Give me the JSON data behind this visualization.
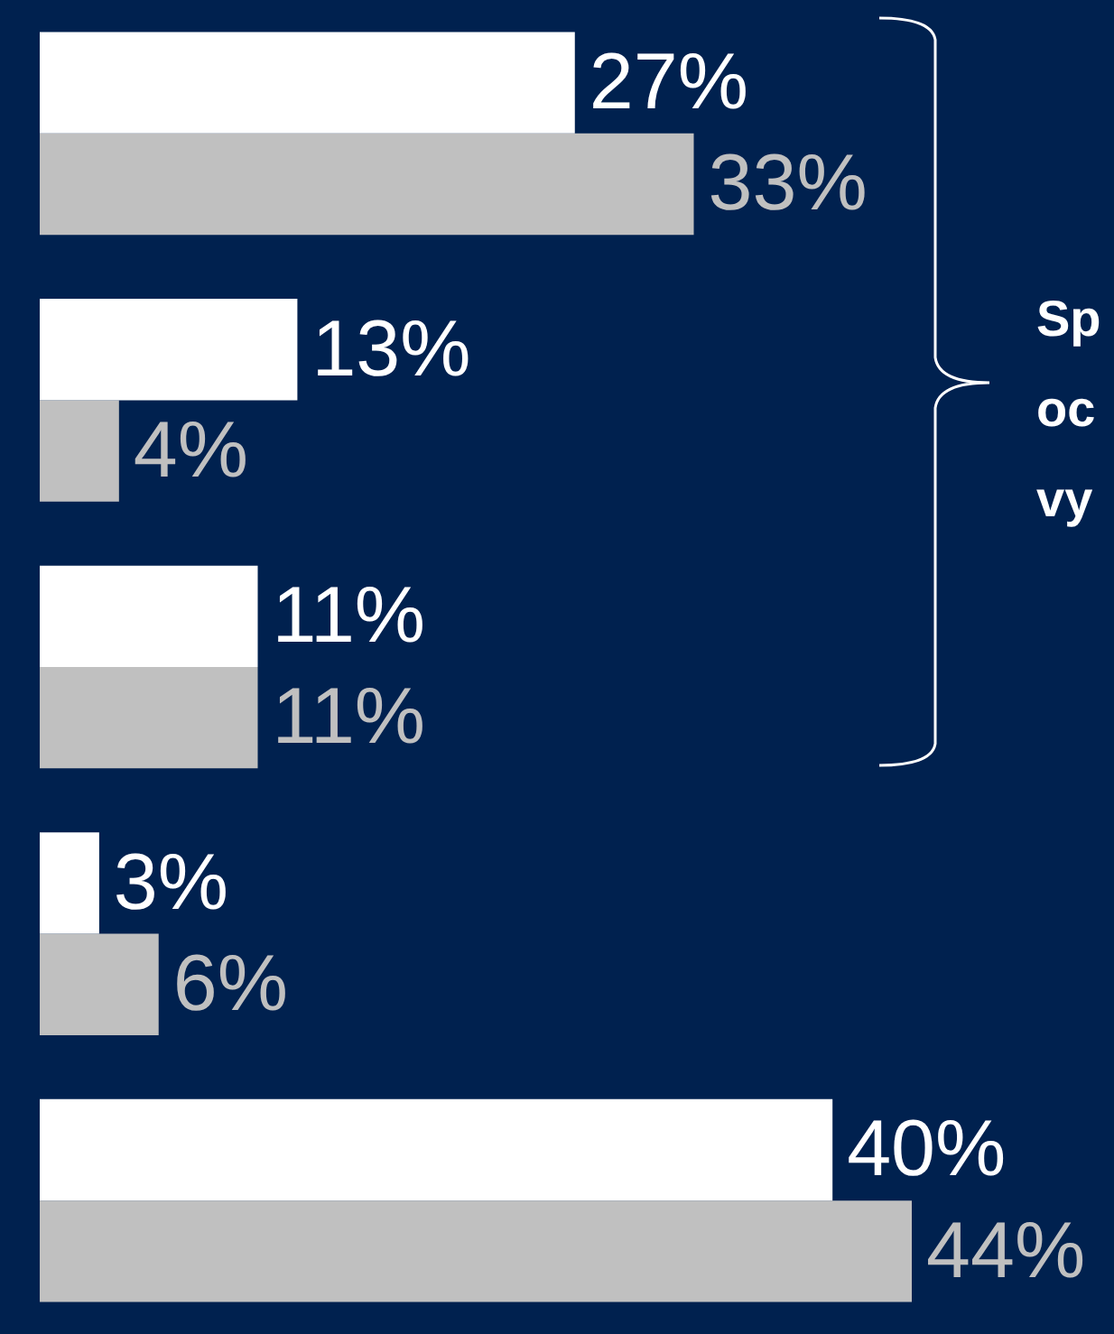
{
  "chart_data": {
    "type": "bar",
    "orientation": "horizontal",
    "categories": [
      null,
      null,
      null,
      null,
      null
    ],
    "series": [
      {
        "color": "#ffffff",
        "values": [
          27,
          13,
          11,
          3,
          40
        ],
        "value_labels": [
          "27%",
          "13%",
          "11%",
          "3%",
          "40%"
        ]
      },
      {
        "color": "#c0c0c0",
        "values": [
          33,
          4,
          11,
          6,
          44
        ],
        "value_labels": [
          "33%",
          "4%",
          "11%",
          "6%",
          "44%"
        ]
      }
    ],
    "legend": false,
    "annotations": [
      "Sp oc vy"
    ]
  }
}
